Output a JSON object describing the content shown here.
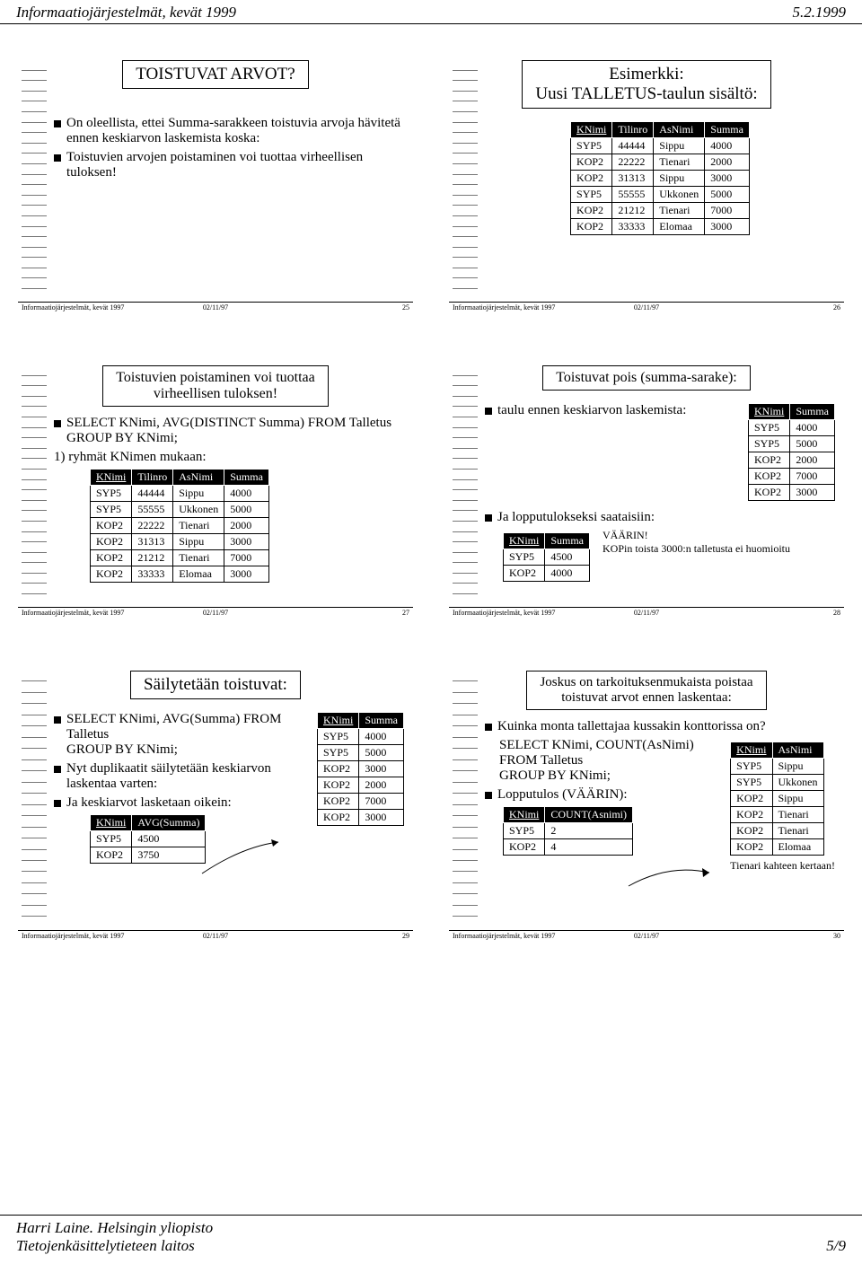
{
  "header": {
    "left": "Informaatiojärjestelmät, kevät 1999",
    "right": "5.2.1999"
  },
  "footer": {
    "line1": "Harri Laine. Helsingin yliopisto",
    "line2": "Tietojenkäsittelytieteen laitos",
    "page": "5/9"
  },
  "slideFooter": {
    "l": "Informaatiojärjestelmät, kevät 1997",
    "c": "02/11/97"
  },
  "s25": {
    "title": "TOISTUVAT ARVOT?",
    "b1": "On oleellista, ettei Summa-sarakkeen toistuvia arvoja hävitetä ennen keskiarvon laskemista koska:",
    "b2": "Toistuvien arvojen poistaminen voi tuottaa virheellisen tuloksen!",
    "num": "25"
  },
  "s26": {
    "title1": "Esimerkki:",
    "title2": "Uusi TALLETUS-taulun sisältö:",
    "cols": [
      "KNimi",
      "Tilinro",
      "AsNimi",
      "Summa"
    ],
    "rows": [
      [
        "SYP5",
        "44444",
        "Sippu",
        "4000"
      ],
      [
        "KOP2",
        "22222",
        "Tienari",
        "2000"
      ],
      [
        "KOP2",
        "31313",
        "Sippu",
        "3000"
      ],
      [
        "SYP5",
        "55555",
        "Ukkonen",
        "5000"
      ],
      [
        "KOP2",
        "21212",
        "Tienari",
        "7000"
      ],
      [
        "KOP2",
        "33333",
        "Elomaa",
        "3000"
      ]
    ],
    "num": "26"
  },
  "s27": {
    "title1": "Toistuvien poistaminen voi tuottaa",
    "title2": "virheellisen tuloksen!",
    "b1": "SELECT KNimi, AVG(DISTINCT Summa) FROM Talletus",
    "b1b": "GROUP BY KNimi;",
    "b2": "1) ryhmät KNimen mukaan:",
    "cols": [
      "KNimi",
      "Tilinro",
      "AsNimi",
      "Summa"
    ],
    "rows": [
      [
        "SYP5",
        "44444",
        "Sippu",
        "4000"
      ],
      [
        "SYP5",
        "55555",
        "Ukkonen",
        "5000"
      ],
      [
        "KOP2",
        "22222",
        "Tienari",
        "2000"
      ],
      [
        "KOP2",
        "31313",
        "Sippu",
        "3000"
      ],
      [
        "KOP2",
        "21212",
        "Tienari",
        "7000"
      ],
      [
        "KOP2",
        "33333",
        "Elomaa",
        "3000"
      ]
    ],
    "num": "27"
  },
  "s28": {
    "title": "Toistuvat pois (summa-sarake):",
    "b1": "taulu ennen keskiarvon laskemista:",
    "t1cols": [
      "KNimi",
      "Summa"
    ],
    "t1rows": [
      [
        "SYP5",
        "4000"
      ],
      [
        "SYP5",
        "5000"
      ],
      [
        "KOP2",
        "2000"
      ],
      [
        "KOP2",
        "7000"
      ],
      [
        "KOP2",
        "3000"
      ]
    ],
    "b2": "Ja lopputulokseksi saataisiin:",
    "t2cols": [
      "KNimi",
      "Summa"
    ],
    "t2rows": [
      [
        "SYP5",
        "4500"
      ],
      [
        "KOP2",
        "4000"
      ]
    ],
    "note1": "VÄÄRIN!",
    "note2": "KOPin toista 3000:n talletusta ei huomioitu",
    "num": "28"
  },
  "s29": {
    "title": "Säilytetään toistuvat:",
    "b1": "SELECT KNimi, AVG(Summa) FROM Talletus",
    "b1b": "GROUP BY KNimi;",
    "b2": "Nyt duplikaatit säilytetään keskiarvon laskentaa varten:",
    "b3": "Ja keskiarvot lasketaan oikein:",
    "t1cols": [
      "KNimi",
      "Summa"
    ],
    "t1rows": [
      [
        "SYP5",
        "4000"
      ],
      [
        "SYP5",
        "5000"
      ],
      [
        "KOP2",
        "3000"
      ],
      [
        "KOP2",
        "2000"
      ],
      [
        "KOP2",
        "7000"
      ],
      [
        "KOP2",
        "3000"
      ]
    ],
    "t2cols": [
      "KNimi",
      "AVG(Summa)"
    ],
    "t2rows": [
      [
        "SYP5",
        "4500"
      ],
      [
        "KOP2",
        "3750"
      ]
    ],
    "num": "29"
  },
  "s30": {
    "title1": "Joskus on tarkoituksenmukaista poistaa",
    "title2": "toistuvat arvot ennen laskentaa:",
    "b1": "Kuinka monta tallettajaa kussakin konttorissa on?",
    "q1": "SELECT KNimi, COUNT(AsNimi)",
    "q2": "FROM Talletus",
    "q3": "GROUP BY KNimi;",
    "b2": "Lopputulos (VÄÄRIN):",
    "t1cols": [
      "KNimi",
      "COUNT(Asnimi)"
    ],
    "t1rows": [
      [
        "SYP5",
        "2"
      ],
      [
        "KOP2",
        "4"
      ]
    ],
    "t2cols": [
      "KNimi",
      "AsNimi"
    ],
    "t2rows": [
      [
        "SYP5",
        "Sippu"
      ],
      [
        "SYP5",
        "Ukkonen"
      ],
      [
        "KOP2",
        "Sippu"
      ],
      [
        "KOP2",
        "Tienari"
      ],
      [
        "KOP2",
        "Tienari"
      ],
      [
        "KOP2",
        "Elomaa"
      ]
    ],
    "note": "Tienari kahteen kertaan!",
    "num": "30"
  }
}
